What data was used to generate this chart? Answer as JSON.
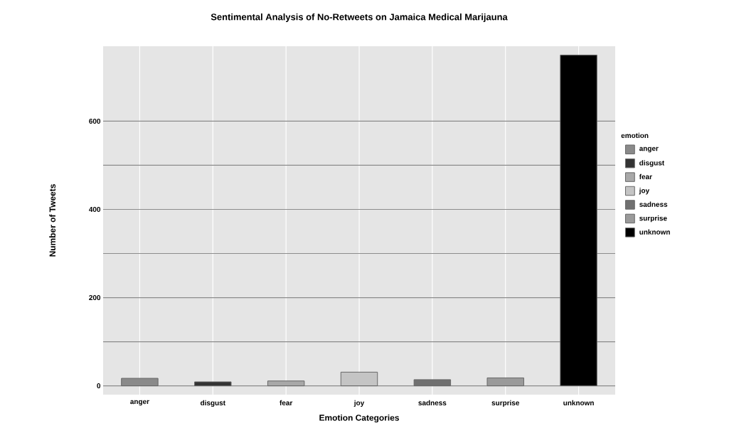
{
  "chart_data": {
    "type": "bar",
    "title": "Sentimental Analysis of No-Retweets on Jamaica Medical Marijauna",
    "xlabel": "Emotion Categories",
    "ylabel": "Number of Tweets",
    "legend_title": "emotion",
    "categories": [
      "anger",
      "disgust",
      "fear",
      "joy",
      "sadness",
      "surprise",
      "unknown"
    ],
    "series": [
      {
        "name": "anger",
        "color": "#8a8a8a",
        "values": [
          17,
          null,
          null,
          null,
          null,
          null,
          null
        ]
      },
      {
        "name": "disgust",
        "color": "#333333",
        "values": [
          null,
          9,
          null,
          null,
          null,
          null,
          null
        ]
      },
      {
        "name": "fear",
        "color": "#a8a8a8",
        "values": [
          null,
          null,
          11,
          null,
          null,
          null,
          null
        ]
      },
      {
        "name": "joy",
        "color": "#c4c4c4",
        "values": [
          null,
          null,
          null,
          31,
          null,
          null,
          null
        ]
      },
      {
        "name": "sadness",
        "color": "#707070",
        "values": [
          null,
          null,
          null,
          null,
          14,
          null,
          null
        ]
      },
      {
        "name": "surprise",
        "color": "#9a9a9a",
        "values": [
          null,
          null,
          null,
          null,
          null,
          18,
          null
        ]
      },
      {
        "name": "unknown",
        "color": "#000000",
        "values": [
          null,
          null,
          null,
          null,
          null,
          null,
          750
        ]
      }
    ],
    "ylim": [
      -20,
      770
    ],
    "yticks": [
      0,
      200,
      400,
      600
    ],
    "grid": true,
    "legend": "right"
  }
}
